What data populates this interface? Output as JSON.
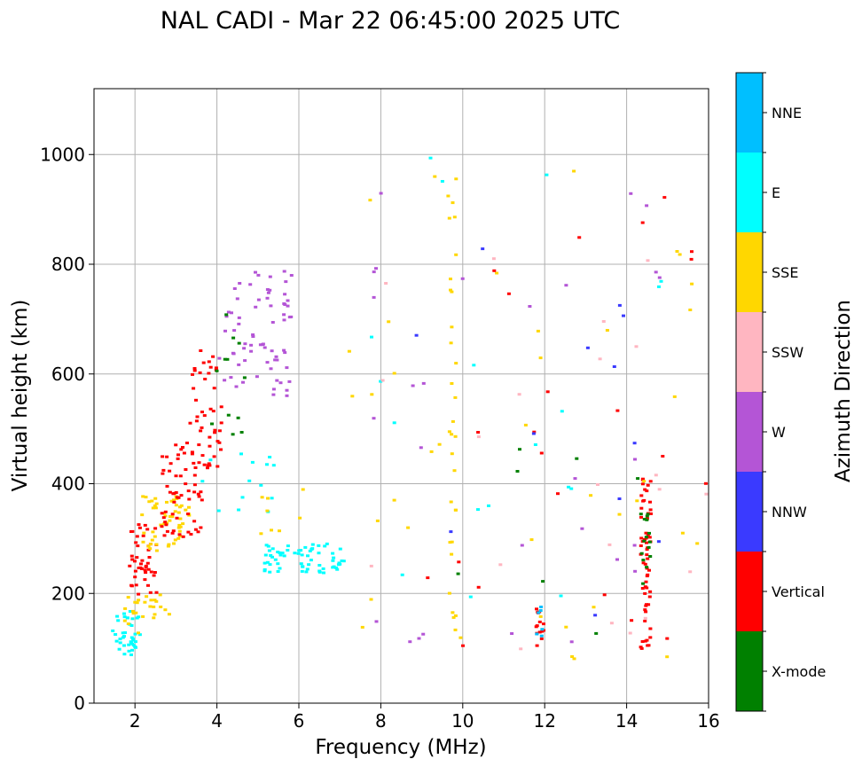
{
  "chart_data": {
    "type": "scatter",
    "title": "NAL CADI - Mar 22 06:45:00 2025 UTC",
    "xlabel": "Frequency (MHz)",
    "ylabel": "Virtual height (km)",
    "xlim": [
      1.0,
      16.0
    ],
    "ylim": [
      0,
      1120
    ],
    "xticks": [
      2,
      4,
      6,
      8,
      10,
      12,
      14,
      16
    ],
    "yticks": [
      0,
      200,
      400,
      600,
      800,
      1000
    ],
    "grid": true,
    "colorbar": {
      "label": "Azimuth Direction",
      "categories": [
        {
          "name": "X-mode",
          "color": "#008000"
        },
        {
          "name": "Vertical",
          "color": "#ff0000"
        },
        {
          "name": "NNW",
          "color": "#3a3aff"
        },
        {
          "name": "W",
          "color": "#b455d6"
        },
        {
          "name": "SSW",
          "color": "#ffb6c1"
        },
        {
          "name": "SSE",
          "color": "#ffd700"
        },
        {
          "name": "E",
          "color": "#00ffff"
        },
        {
          "name": "NNE",
          "color": "#00bfff"
        }
      ]
    },
    "clusters": [
      {
        "name": "low-spread-echo",
        "category": "E",
        "x": [
          1.4,
          2.1
        ],
        "y": [
          90,
          170
        ],
        "count": 40
      },
      {
        "name": "low-echo-2",
        "category": "SSE",
        "x": [
          1.7,
          2.8
        ],
        "y": [
          130,
          200
        ],
        "count": 25
      },
      {
        "name": "f-trace-lower",
        "category": "Vertical",
        "x": [
          1.8,
          2.5
        ],
        "y": [
          200,
          330
        ],
        "count": 45
      },
      {
        "name": "f-trace-spread",
        "category": "SSE",
        "x": [
          2.1,
          3.3
        ],
        "y": [
          280,
          380
        ],
        "count": 55
      },
      {
        "name": "f-trace-mid",
        "category": "Vertical",
        "x": [
          2.6,
          3.6
        ],
        "y": [
          300,
          480
        ],
        "count": 60
      },
      {
        "name": "f-trace-upper",
        "category": "Vertical",
        "x": [
          3.3,
          4.1
        ],
        "y": [
          430,
          650
        ],
        "count": 45
      },
      {
        "name": "f-trace-top",
        "category": "W",
        "x": [
          4.0,
          5.8
        ],
        "y": [
          560,
          790
        ],
        "count": 70
      },
      {
        "name": "scatter-mid",
        "category": "E",
        "x": [
          3.6,
          5.4
        ],
        "y": [
          350,
          470
        ],
        "count": 14
      },
      {
        "name": "scatter-mid-b",
        "category": "X-mode",
        "x": [
          3.8,
          5.2
        ],
        "y": [
          440,
          760
        ],
        "count": 12
      },
      {
        "name": "e-trace",
        "category": "E",
        "x": [
          5.1,
          7.1
        ],
        "y": [
          240,
          295
        ],
        "count": 65
      },
      {
        "name": "e-trace-sse",
        "category": "SSE",
        "x": [
          5.0,
          6.6
        ],
        "y": [
          300,
          400
        ],
        "count": 8
      },
      {
        "name": "ch-14-4-echo",
        "category": "Vertical",
        "x": [
          14.3,
          14.55
        ],
        "y": [
          90,
          420
        ],
        "count": 60
      },
      {
        "name": "ch-14-4-xmode",
        "category": "X-mode",
        "x": [
          14.3,
          14.55
        ],
        "y": [
          220,
          370
        ],
        "count": 14
      },
      {
        "name": "ch-11-8-echo",
        "category": "Vertical",
        "x": [
          11.75,
          11.95
        ],
        "y": [
          100,
          180
        ],
        "count": 14
      },
      {
        "name": "ch-11-8-nne",
        "category": "NNE",
        "x": [
          11.75,
          11.95
        ],
        "y": [
          120,
          180
        ],
        "count": 6
      },
      {
        "name": "ch-9-7",
        "category": "SSE",
        "x": [
          9.6,
          9.8
        ],
        "y": [
          90,
          1010
        ],
        "count": 30
      },
      {
        "name": "sparse-sse",
        "category": "SSE",
        "x": [
          7.0,
          16.0
        ],
        "y": [
          80,
          1000
        ],
        "count": 40
      },
      {
        "name": "sparse-w",
        "category": "W",
        "x": [
          7.5,
          15.5
        ],
        "y": [
          100,
          980
        ],
        "count": 28
      },
      {
        "name": "sparse-vertical",
        "category": "Vertical",
        "x": [
          9.0,
          16.0
        ],
        "y": [
          80,
          940
        ],
        "count": 22
      },
      {
        "name": "sparse-e",
        "category": "E",
        "x": [
          7.0,
          15.0
        ],
        "y": [
          100,
          1000
        ],
        "count": 18
      },
      {
        "name": "sparse-ssw",
        "category": "SSW",
        "x": [
          7.0,
          16.0
        ],
        "y": [
          100,
          900
        ],
        "count": 22
      },
      {
        "name": "sparse-nnw",
        "category": "NNW",
        "x": [
          7.8,
          15.5
        ],
        "y": [
          150,
          900
        ],
        "count": 12
      },
      {
        "name": "sparse-xmode",
        "category": "X-mode",
        "x": [
          9.5,
          14.5
        ],
        "y": [
          120,
          520
        ],
        "count": 8
      }
    ]
  }
}
